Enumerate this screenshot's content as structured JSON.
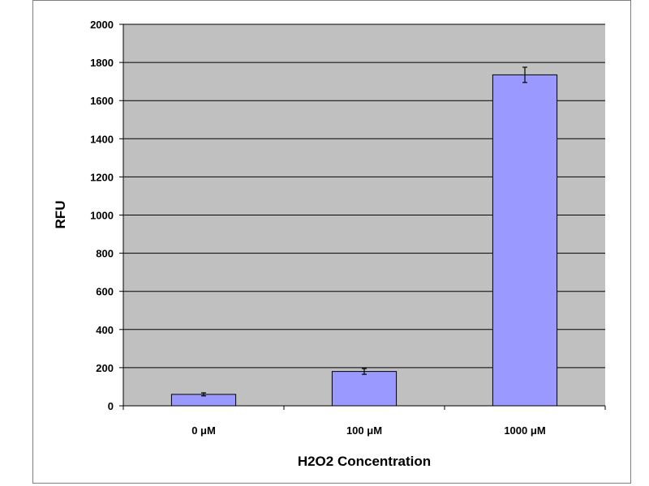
{
  "chart_data": {
    "type": "bar",
    "title": "",
    "xlabel": "H2O2  Concentration",
    "ylabel": "RFU",
    "categories": [
      "0 μM",
      "100 μM",
      "1000 μM"
    ],
    "values": [
      60,
      180,
      1735
    ],
    "error": [
      8,
      15,
      40
    ],
    "ylim": [
      0,
      2000
    ],
    "yticks": [
      0,
      200,
      400,
      600,
      800,
      1000,
      1200,
      1400,
      1600,
      1800,
      2000
    ],
    "grid": true,
    "legend": "none",
    "colors": {
      "bar": "#9999ff",
      "bar_edge": "#000000",
      "plot_bg": "#c0c0c0",
      "grid": "#000000"
    }
  }
}
